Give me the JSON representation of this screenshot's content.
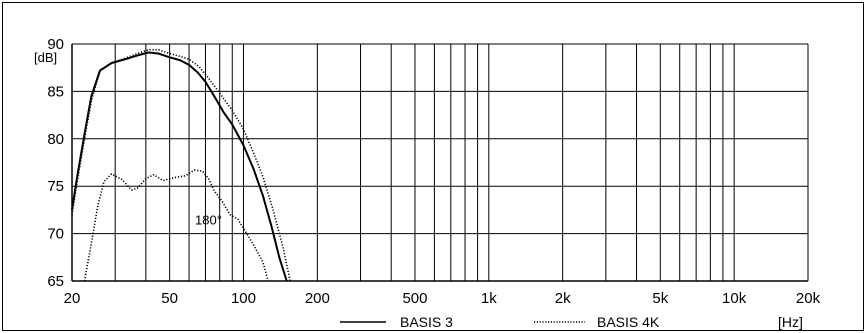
{
  "chart_data": {
    "type": "line",
    "xscale": "log",
    "xlim": [
      20,
      20000
    ],
    "ylim": [
      65,
      90
    ],
    "grid": true,
    "legend_position": "bottom",
    "ylabel": "[dB]",
    "xlabel": "[Hz]",
    "x_tick_labels": [
      {
        "value": 20,
        "label": "20"
      },
      {
        "value": 50,
        "label": "50"
      },
      {
        "value": 100,
        "label": "100"
      },
      {
        "value": 200,
        "label": "200"
      },
      {
        "value": 500,
        "label": "500"
      },
      {
        "value": 1000,
        "label": "1k"
      },
      {
        "value": 2000,
        "label": "2k"
      },
      {
        "value": 5000,
        "label": "5k"
      },
      {
        "value": 10000,
        "label": "10k"
      },
      {
        "value": 20000,
        "label": "20k"
      }
    ],
    "y_tick_labels": [
      {
        "value": 90,
        "label": "90"
      },
      {
        "value": 85,
        "label": "85"
      },
      {
        "value": 80,
        "label": "80"
      },
      {
        "value": 75,
        "label": "75"
      },
      {
        "value": 70,
        "label": "70"
      },
      {
        "value": 65,
        "label": "65"
      }
    ],
    "annotations": [
      {
        "text": "180°",
        "x": 72,
        "y": 71.5
      }
    ],
    "series": [
      {
        "name": "BASIS 3",
        "style": "solid",
        "color": "#000000",
        "points": [
          [
            20,
            72.5
          ],
          [
            21,
            76
          ],
          [
            22.5,
            80.5
          ],
          [
            24,
            84.5
          ],
          [
            26,
            87.2
          ],
          [
            29,
            88
          ],
          [
            33,
            88.4
          ],
          [
            37,
            88.8
          ],
          [
            41,
            89.1
          ],
          [
            45,
            89
          ],
          [
            50,
            88.6
          ],
          [
            55,
            88.3
          ],
          [
            60,
            87.8
          ],
          [
            65,
            87
          ],
          [
            70,
            86
          ],
          [
            76,
            84.5
          ],
          [
            83,
            82.8
          ],
          [
            90,
            81.5
          ],
          [
            100,
            79.3
          ],
          [
            110,
            76.8
          ],
          [
            120,
            74
          ],
          [
            130,
            70.8
          ],
          [
            140,
            67.5
          ],
          [
            150,
            65
          ]
        ]
      },
      {
        "name": "BASIS 4K",
        "style": "dotted",
        "color": "#000000",
        "points": [
          [
            20,
            72
          ],
          [
            21,
            75.5
          ],
          [
            22.5,
            80
          ],
          [
            24,
            84
          ],
          [
            26,
            87.2
          ],
          [
            29,
            88
          ],
          [
            33,
            88.5
          ],
          [
            37,
            89
          ],
          [
            41,
            89.4
          ],
          [
            45,
            89.4
          ],
          [
            50,
            89
          ],
          [
            55,
            88.7
          ],
          [
            60,
            88.4
          ],
          [
            66,
            87.6
          ],
          [
            72,
            86.4
          ],
          [
            80,
            84.8
          ],
          [
            90,
            83
          ],
          [
            100,
            81
          ],
          [
            110,
            78.5
          ],
          [
            120,
            76
          ],
          [
            132,
            72.5
          ],
          [
            145,
            68.5
          ],
          [
            155,
            65
          ]
        ]
      },
      {
        "name": "",
        "label": "180°",
        "style": "dotted",
        "color": "#000000",
        "points": [
          [
            22.5,
            65
          ],
          [
            24,
            69
          ],
          [
            25.5,
            73
          ],
          [
            27,
            75.5
          ],
          [
            29,
            76.3
          ],
          [
            32,
            75.7
          ],
          [
            35,
            74.6
          ],
          [
            37,
            74.8
          ],
          [
            40,
            75.8
          ],
          [
            43,
            76.2
          ],
          [
            47,
            75.6
          ],
          [
            52,
            75.9
          ],
          [
            58,
            76.1
          ],
          [
            63,
            76.7
          ],
          [
            68,
            76.6
          ],
          [
            72,
            75.8
          ],
          [
            76,
            74.5
          ],
          [
            82,
            73.4
          ],
          [
            88,
            72
          ],
          [
            95,
            71.5
          ],
          [
            102,
            70.2
          ],
          [
            110,
            68.8
          ],
          [
            120,
            67
          ],
          [
            126,
            65
          ]
        ]
      }
    ]
  }
}
